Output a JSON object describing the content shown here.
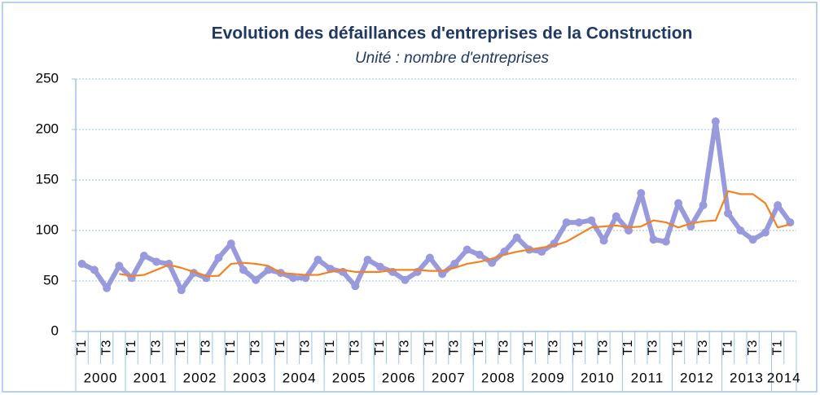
{
  "chart_data": {
    "type": "line",
    "title": "Evolution des défaillances d'entreprises de la Construction",
    "subtitle": "Unité : nombre d'entreprises",
    "categories": [
      "T1",
      null,
      "T3",
      null,
      "T1",
      null,
      "T3",
      null,
      "T1",
      null,
      "T3",
      null,
      "T1",
      null,
      "T3",
      null,
      "T1",
      null,
      "T3",
      null,
      "T1",
      null,
      "T3",
      null,
      "T1",
      null,
      "T3",
      null,
      "T1",
      null,
      "T3",
      null,
      "T1",
      null,
      "T3",
      null,
      "T1",
      null,
      "T3",
      null,
      "T1",
      null,
      "T3",
      null,
      "T1",
      null,
      "T3",
      null,
      "T1",
      null,
      "T3",
      null,
      "T1",
      null,
      "T3",
      null,
      "T1",
      null
    ],
    "year_labels": [
      "2000",
      "2001",
      "2002",
      "2003",
      "2004",
      "2005",
      "2006",
      "2007",
      "2008",
      "2009",
      "2010",
      "2011",
      "2012",
      "2013",
      "2014"
    ],
    "series": [
      {
        "color": "#9999dd",
        "values": [
          67,
          61,
          43,
          65,
          53,
          75,
          69,
          67,
          41,
          58,
          53,
          73,
          87,
          61,
          51,
          61,
          58,
          53,
          53,
          71,
          62,
          59,
          45,
          71,
          64,
          59,
          51,
          59,
          73,
          57,
          67,
          81,
          76,
          68,
          79,
          93,
          81,
          79,
          87,
          108,
          108,
          110,
          90,
          114,
          100,
          137,
          91,
          89,
          127,
          104,
          125,
          208,
          117,
          100,
          91,
          98,
          125,
          108
        ]
      },
      {
        "color": "#f58220",
        "values": [
          null,
          null,
          null,
          57,
          55,
          56,
          61,
          66,
          63,
          59,
          55,
          55,
          67,
          68,
          67,
          65,
          58,
          57,
          56,
          56,
          59,
          61,
          59,
          59,
          59,
          61,
          61,
          61,
          60,
          60,
          63,
          67,
          69,
          72,
          76,
          79,
          81,
          83,
          85,
          89,
          96,
          103,
          104,
          105,
          103,
          104,
          110,
          108,
          103,
          107,
          109,
          110,
          139,
          136,
          136,
          127,
          103,
          106
        ]
      }
    ],
    "ylim": [
      0,
      250
    ],
    "yticks": [
      0,
      50,
      100,
      150,
      200,
      250
    ],
    "grid": true
  }
}
